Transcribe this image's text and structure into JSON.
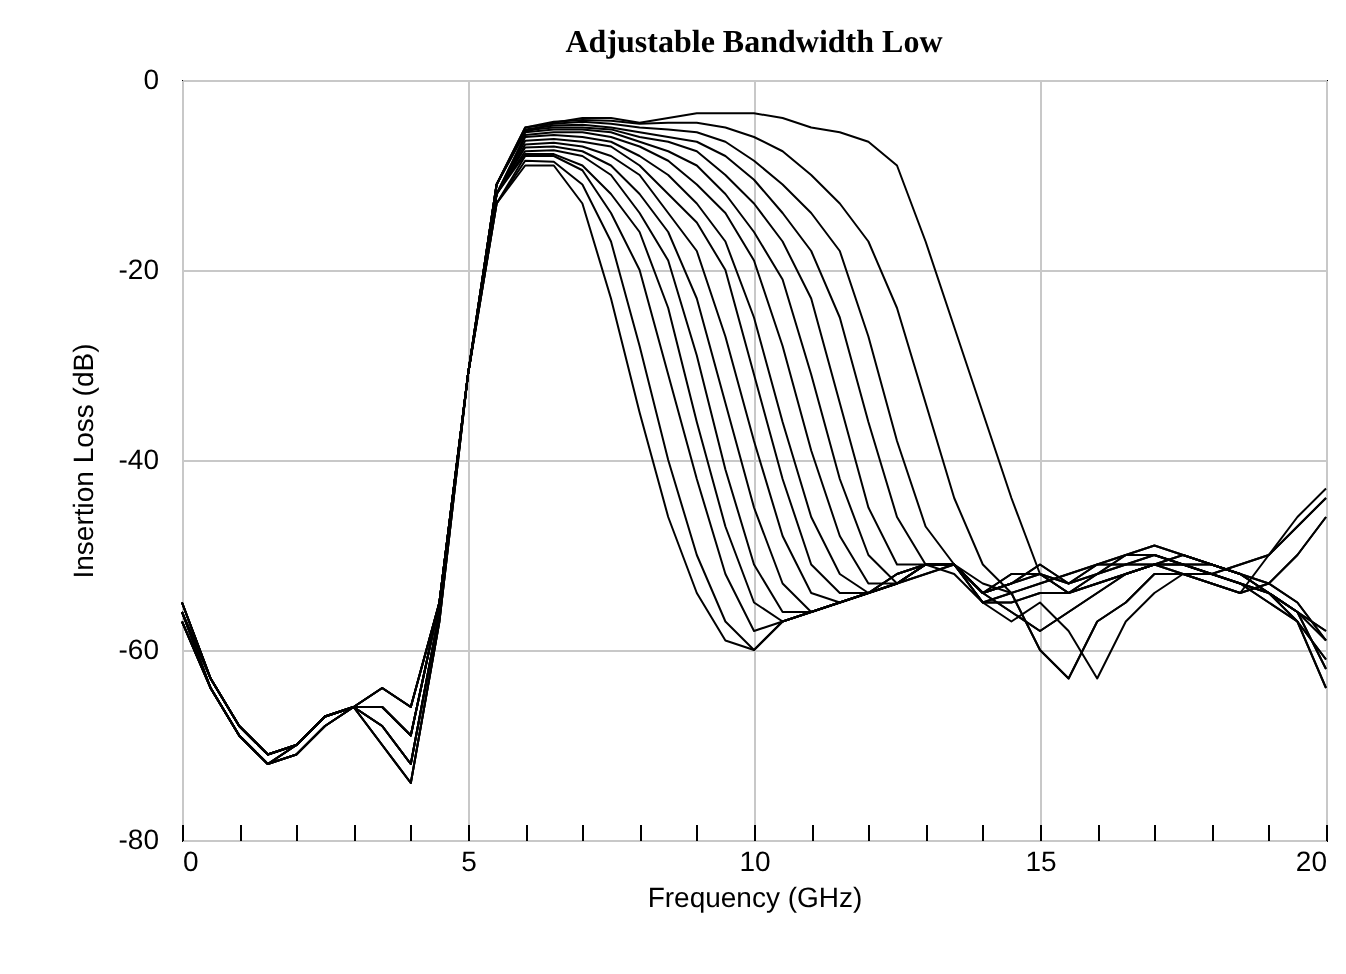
{
  "chart_data": {
    "type": "line",
    "title": "Adjustable Bandwidth Low",
    "xlabel": "Frequency (GHz)",
    "ylabel": "Insertion Loss (dB)",
    "x": [
      0,
      0.5,
      1,
      1.5,
      2,
      2.5,
      3,
      3.5,
      4,
      4.5,
      5,
      5.5,
      6,
      6.5,
      7,
      7.5,
      8,
      8.5,
      9,
      9.5,
      10,
      10.5,
      11,
      11.5,
      12,
      12.5,
      13,
      13.5,
      14,
      14.5,
      15,
      15.5,
      16,
      16.5,
      17,
      17.5,
      18,
      18.5,
      19,
      19.5,
      20
    ],
    "xlim": [
      0,
      20
    ],
    "xticks": [
      0,
      {
        "value": 1,
        "label": null
      },
      {
        "value": 2,
        "label": null
      },
      {
        "value": 3,
        "label": null
      },
      {
        "value": 4,
        "label": null
      },
      5,
      {
        "value": 6,
        "label": null
      },
      {
        "value": 7,
        "label": null
      },
      {
        "value": 8,
        "label": null
      },
      {
        "value": 9,
        "label": null
      },
      10,
      {
        "value": 11,
        "label": null
      },
      {
        "value": 12,
        "label": null
      },
      {
        "value": 13,
        "label": null
      },
      {
        "value": 14,
        "label": null
      },
      15,
      {
        "value": 16,
        "label": null
      },
      {
        "value": 17,
        "label": null
      },
      {
        "value": 18,
        "label": null
      },
      {
        "value": 19,
        "label": null
      },
      20
    ],
    "ylim": [
      -80,
      0
    ],
    "yticks": [
      -80,
      -60,
      -40,
      -20,
      0
    ],
    "grid": true,
    "legend": false,
    "marker": "none",
    "line_style": "solid",
    "series": [
      {
        "color": "#000000",
        "values": [
          -56,
          -63,
          -68,
          -71,
          -70,
          -67,
          -66,
          -70,
          -74,
          -57,
          -31,
          -13,
          -9,
          -9,
          -13,
          -23,
          -35,
          -46,
          -54,
          -59,
          -60,
          -57,
          -56,
          -55,
          -54,
          -53,
          -51,
          -51,
          -54,
          -53,
          -52,
          -53,
          -51,
          -51,
          -50,
          -51,
          -51,
          -52,
          -54,
          -56,
          -58
        ]
      },
      {
        "color": "#000000",
        "values": [
          -57,
          -64,
          -69,
          -72,
          -71,
          -68,
          -66,
          -68,
          -72,
          -56,
          -31,
          -13,
          -8.5,
          -8.6,
          -11,
          -17,
          -28,
          -40,
          -50,
          -57,
          -60,
          -57,
          -56,
          -55,
          -54,
          -52,
          -51,
          -51,
          -55,
          -54,
          -53,
          -52,
          -51,
          -50,
          -50,
          -51,
          -52,
          -53,
          -55,
          -57,
          -61
        ]
      },
      {
        "color": "#000000",
        "values": [
          -56,
          -63,
          -68,
          -71,
          -70,
          -67,
          -66,
          -70,
          -74,
          -57,
          -31,
          -13,
          -8,
          -8,
          -9.5,
          -14,
          -20,
          -31,
          -42,
          -52,
          -58,
          -57,
          -56,
          -55,
          -54,
          -53,
          -52,
          -51,
          -54,
          -56,
          -58,
          -56,
          -54,
          -52,
          -51,
          -52,
          -52,
          -51,
          -50,
          -47,
          -44
        ]
      },
      {
        "color": "#000000",
        "values": [
          -55,
          -63,
          -68,
          -71,
          -70,
          -67,
          -66,
          -66,
          -69,
          -55,
          -31,
          -12,
          -7.8,
          -7.8,
          -9,
          -12,
          -16,
          -24,
          -36,
          -47,
          -55,
          -57,
          -56,
          -55,
          -54,
          -53,
          -51,
          -52,
          -55,
          -55,
          -54,
          -54,
          -53,
          -52,
          -51,
          -51,
          -52,
          -53,
          -54,
          -56,
          -62
        ]
      },
      {
        "color": "#000000",
        "values": [
          -57,
          -64,
          -69,
          -72,
          -71,
          -68,
          -66,
          -68,
          -72,
          -56,
          -31,
          -12,
          -7.5,
          -7.4,
          -8,
          -10,
          -14,
          -19,
          -29,
          -41,
          -51,
          -56,
          -56,
          -55,
          -54,
          -53,
          -51,
          -51,
          -53,
          -54,
          -60,
          -63,
          -57,
          -55,
          -52,
          -52,
          -53,
          -54,
          -53,
          -50,
          -46
        ]
      },
      {
        "color": "#000000",
        "values": [
          -56,
          -64,
          -69,
          -72,
          -70,
          -67,
          -66,
          -64,
          -66,
          -55,
          -31,
          -12,
          -7.1,
          -7,
          -7.5,
          -9,
          -12,
          -16,
          -23,
          -34,
          -45,
          -53,
          -56,
          -55,
          -54,
          -52,
          -51,
          -51,
          -54,
          -53,
          -51,
          -53,
          -52,
          -51,
          -51,
          -50,
          -51,
          -52,
          -53,
          -55,
          -59
        ]
      },
      {
        "color": "#000000",
        "values": [
          -55,
          -63,
          -68,
          -71,
          -70,
          -67,
          -66,
          -66,
          -69,
          -55,
          -31,
          -12,
          -6.8,
          -6.6,
          -7,
          -8,
          -10,
          -14,
          -18,
          -27,
          -38,
          -48,
          -54,
          -55,
          -54,
          -53,
          -51,
          -51,
          -54,
          -52,
          -52,
          -54,
          -52,
          -50,
          -49,
          -50,
          -51,
          -52,
          -54,
          -57,
          -64
        ]
      },
      {
        "color": "#000000",
        "values": [
          -56,
          -64,
          -69,
          -72,
          -70,
          -67,
          -66,
          -64,
          -66,
          -55,
          -31,
          -12,
          -6.4,
          -6.2,
          -6.5,
          -7,
          -9,
          -12,
          -15,
          -20,
          -31,
          -42,
          -51,
          -54,
          -54,
          -53,
          -51,
          -51,
          -55,
          -57,
          -55,
          -58,
          -63,
          -57,
          -54,
          -52,
          -53,
          -54,
          -50,
          -46,
          -43
        ]
      },
      {
        "color": "#000000",
        "values": [
          -57,
          -64,
          -69,
          -72,
          -71,
          -68,
          -66,
          -68,
          -72,
          -56,
          -31,
          -12,
          -6,
          -5.8,
          -6,
          -6.5,
          -8,
          -10,
          -13,
          -17,
          -25,
          -36,
          -46,
          -52,
          -54,
          -52,
          -51,
          -51,
          -54,
          -53,
          -52,
          -53,
          -51,
          -51,
          -50,
          -51,
          -51,
          -52,
          -54,
          -56,
          -58
        ]
      },
      {
        "color": "#000000",
        "values": [
          -55,
          -63,
          -68,
          -71,
          -70,
          -67,
          -66,
          -66,
          -69,
          -55,
          -31,
          -12,
          -5.8,
          -5.5,
          -5.5,
          -6,
          -7,
          -8.5,
          -11,
          -14,
          -19,
          -28,
          -39,
          -48,
          -53,
          -53,
          -51,
          -51,
          -55,
          -55,
          -54,
          -54,
          -53,
          -52,
          -51,
          -51,
          -52,
          -53,
          -54,
          -56,
          -62
        ]
      },
      {
        "color": "#000000",
        "values": [
          -56,
          -64,
          -69,
          -72,
          -70,
          -67,
          -66,
          -64,
          -66,
          -55,
          -31,
          -11,
          -5.5,
          -5.2,
          -5.2,
          -5.5,
          -6.5,
          -7.5,
          -9,
          -12,
          -16,
          -21,
          -31,
          -42,
          -50,
          -53,
          -52,
          -51,
          -55,
          -54,
          -53,
          -52,
          -51,
          -50,
          -50,
          -51,
          -52,
          -53,
          -55,
          -57,
          -61
        ]
      },
      {
        "color": "#000000",
        "values": [
          -56,
          -63,
          -68,
          -71,
          -70,
          -67,
          -66,
          -70,
          -74,
          -57,
          -31,
          -11,
          -5.3,
          -5,
          -5,
          -5.2,
          -6,
          -6.5,
          -7.5,
          -10,
          -13,
          -17,
          -23,
          -34,
          -45,
          -51,
          -51,
          -51,
          -54,
          -53,
          -51,
          -53,
          -52,
          -51,
          -51,
          -50,
          -51,
          -52,
          -53,
          -55,
          -59
        ]
      },
      {
        "color": "#000000",
        "values": [
          -55,
          -63,
          -68,
          -71,
          -70,
          -67,
          -66,
          -66,
          -69,
          -55,
          -31,
          -11,
          -5.2,
          -4.8,
          -4.7,
          -5,
          -5.5,
          -6,
          -6.5,
          -8,
          -10.5,
          -14,
          -18,
          -25,
          -36,
          -46,
          -51,
          -51,
          -54,
          -52,
          -52,
          -54,
          -52,
          -50,
          -49,
          -50,
          -51,
          -52,
          -54,
          -57,
          -64
        ]
      },
      {
        "color": "#000000",
        "values": [
          -57,
          -64,
          -69,
          -72,
          -71,
          -68,
          -66,
          -68,
          -72,
          -56,
          -31,
          -11,
          -5,
          -4.6,
          -4.4,
          -4.6,
          -5,
          -5.2,
          -5.5,
          -6.5,
          -8.5,
          -11,
          -14,
          -18,
          -27,
          -38,
          -47,
          -51,
          -54,
          -56,
          -58,
          -56,
          -54,
          -52,
          -51,
          -52,
          -52,
          -51,
          -50,
          -47,
          -44
        ]
      },
      {
        "color": "#000000",
        "values": [
          -56,
          -64,
          -69,
          -72,
          -70,
          -67,
          -66,
          -64,
          -66,
          -55,
          -31,
          -11,
          -5,
          -4.4,
          -4.2,
          -4.3,
          -4.6,
          -4.5,
          -4.5,
          -5,
          -6,
          -7.5,
          -10,
          -13,
          -17,
          -24,
          -34,
          -44,
          -51,
          -54,
          -60,
          -63,
          -57,
          -55,
          -52,
          -52,
          -53,
          -54,
          -53,
          -50,
          -46
        ]
      },
      {
        "color": "#000000",
        "values": [
          -55,
          -63,
          -68,
          -71,
          -70,
          -67,
          -66,
          -66,
          -69,
          -55,
          -31,
          -11,
          -5.5,
          -4.5,
          -4,
          -4,
          -4.5,
          -4,
          -3.5,
          -3.5,
          -3.5,
          -4,
          -5,
          -5.5,
          -6.5,
          -9,
          -17,
          -26,
          -35,
          -44,
          -52,
          -54,
          -53,
          -52,
          -51,
          -51,
          -52,
          -53,
          -54,
          -56,
          -59
        ]
      }
    ]
  }
}
